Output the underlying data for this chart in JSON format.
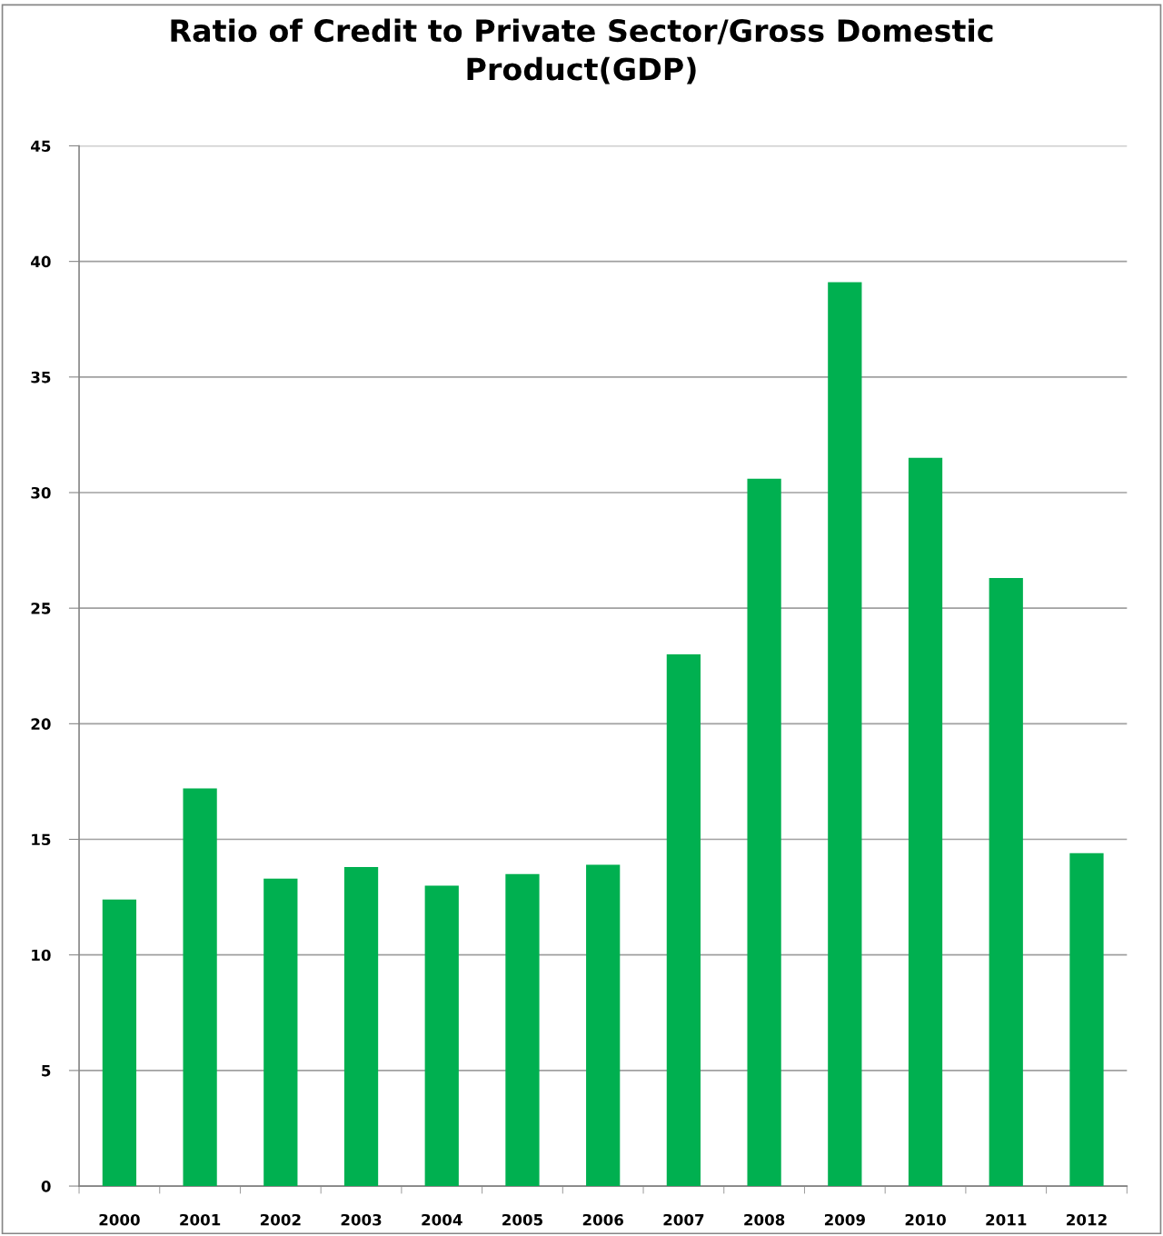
{
  "chart_data": {
    "type": "bar",
    "title": "Ratio of Credit to Private Sector/Gross Domestic Product(GDP)",
    "categories": [
      "2000",
      "2001",
      "2002",
      "2003",
      "2004",
      "2005",
      "2006",
      "2007",
      "2008",
      "2009",
      "2010",
      "2011",
      "2012"
    ],
    "values": [
      12.4,
      17.2,
      13.3,
      13.8,
      13.0,
      13.5,
      13.9,
      23.0,
      30.6,
      39.1,
      31.5,
      26.3,
      14.4
    ],
    "color": "#00b050",
    "ylim": [
      0,
      45
    ],
    "yticks": [
      0,
      5,
      10,
      15,
      20,
      25,
      30,
      35,
      40,
      45
    ],
    "grid": "y"
  }
}
